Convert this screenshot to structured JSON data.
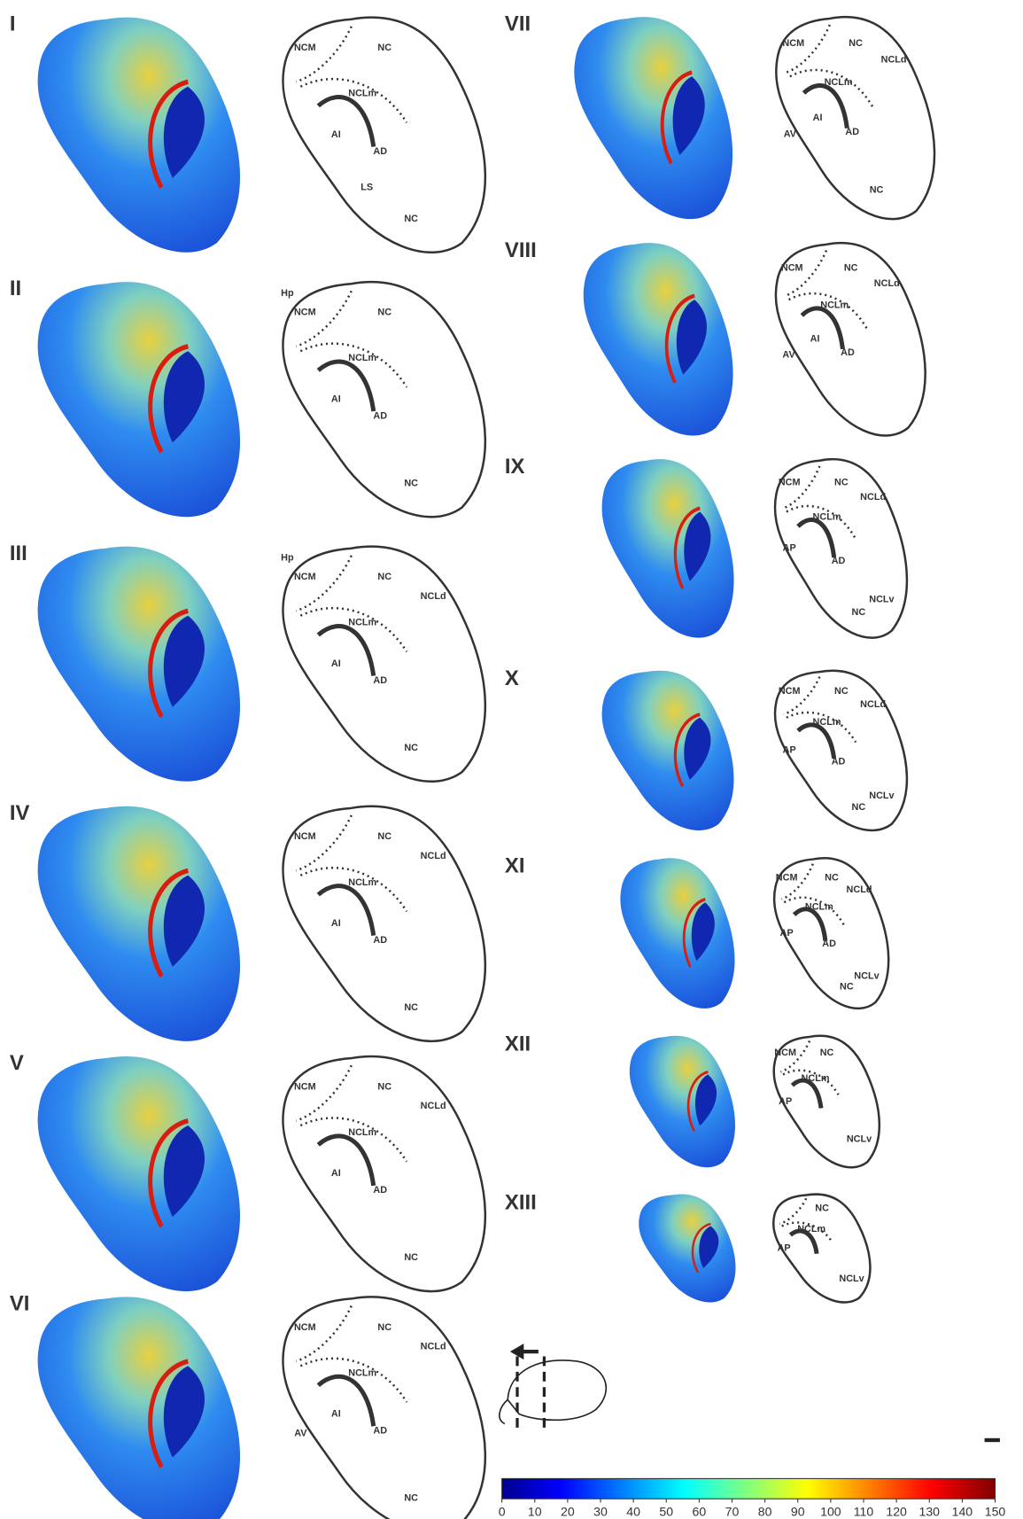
{
  "panels": [
    {
      "label": "I",
      "regions": [
        "NC",
        "NCM",
        "NCLm",
        "AI",
        "AD",
        "LS",
        "NC"
      ]
    },
    {
      "label": "II",
      "regions": [
        "Hp",
        "NCM",
        "NC",
        "NCLm",
        "AI",
        "AD",
        "NC"
      ]
    },
    {
      "label": "III",
      "regions": [
        "Hp",
        "NCM",
        "NC",
        "NCLd",
        "NCLm",
        "AI",
        "AD",
        "NC"
      ]
    },
    {
      "label": "IV",
      "regions": [
        "NCM",
        "NCLd",
        "NC",
        "NCLm",
        "AI",
        "AD",
        "NC"
      ]
    },
    {
      "label": "V",
      "regions": [
        "NCM",
        "NCLd",
        "NC",
        "NCLm",
        "AI",
        "AD",
        "NC"
      ]
    },
    {
      "label": "VI",
      "regions": [
        "NCM",
        "NCLd",
        "NC",
        "NCLm",
        "AV",
        "AI",
        "AD",
        "NC"
      ]
    },
    {
      "label": "VII",
      "regions": [
        "NCM",
        "NCLd",
        "NC",
        "NCLm",
        "AI",
        "AV",
        "AD",
        "NC"
      ]
    },
    {
      "label": "VIII",
      "regions": [
        "NCM",
        "NCLd",
        "NC",
        "NCLm",
        "AI",
        "AV",
        "AD"
      ]
    },
    {
      "label": "IX",
      "regions": [
        "NCM",
        "NCLd",
        "NC",
        "NCLm",
        "AP",
        "AD",
        "NC",
        "NCLv"
      ]
    },
    {
      "label": "X",
      "regions": [
        "NCM",
        "NCLd",
        "NC",
        "NCLm",
        "AP",
        "AD",
        "NC",
        "NCLv"
      ]
    },
    {
      "label": "XI",
      "regions": [
        "NCM",
        "NCLd",
        "NC",
        "NCLm",
        "AP",
        "AD",
        "NC",
        "NCLv"
      ]
    },
    {
      "label": "XII",
      "regions": [
        "NCM",
        "NCLm",
        "AP",
        "NC",
        "NCLv"
      ]
    },
    {
      "label": "XIII",
      "regions": [
        "NCLm",
        "AP",
        "NC",
        "NCLv"
      ]
    }
  ],
  "colorbar": {
    "lim": [
      0,
      150
    ],
    "ticks": [
      0,
      10,
      20,
      30,
      40,
      50,
      60,
      70,
      80,
      90,
      100,
      110,
      120,
      130,
      140,
      150
    ]
  }
}
